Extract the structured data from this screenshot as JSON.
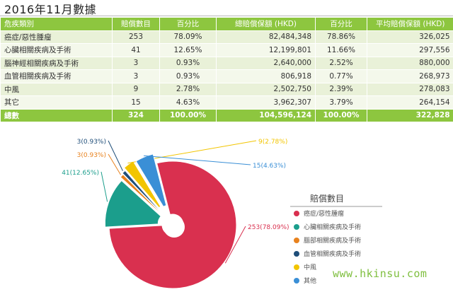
{
  "title": "2016年11月數據",
  "table": {
    "headers": [
      "危疾類別",
      "賠償數目",
      "百分比",
      "總賠償保額 (HKD)",
      "百分比",
      "平均賠償保額 (HKD)"
    ],
    "rows": [
      [
        "癌症/惡性腫瘤",
        "253",
        "78.09%",
        "82,484,348",
        "78.86%",
        "326,025"
      ],
      [
        "心臟相關疾病及手術",
        "41",
        "12.65%",
        "12,199,801",
        "11.66%",
        "297,556"
      ],
      [
        "腦神經相關疾病及手術",
        "3",
        "0.93%",
        "2,640,000",
        "2.52%",
        "880,000"
      ],
      [
        "血管相關疾病及手術",
        "3",
        "0.93%",
        "806,918",
        "0.77%",
        "268,973"
      ],
      [
        "中風",
        "9",
        "2.78%",
        "2,502,750",
        "2.39%",
        "278,083"
      ],
      [
        "其它",
        "15",
        "4.63%",
        "3,962,307",
        "3.79%",
        "264,154"
      ]
    ],
    "total": [
      "總數",
      "324",
      "100.00%",
      "104,596,124",
      "100.00%",
      "322,828"
    ]
  },
  "chart_data": {
    "type": "pie",
    "legend_title": "賠償數目",
    "legend_position": "right",
    "slices": [
      {
        "name": "癌症/惡性腫瘤",
        "value": 253,
        "label": "253(78.09%)",
        "color": "#d9304f"
      },
      {
        "name": "心臟相關疾病及手術",
        "value": 41,
        "label": "41(12.65%)",
        "color": "#1b9e8c"
      },
      {
        "name": "腦部相關疾病及手術",
        "value": 3,
        "label": "3(0.93%)",
        "color": "#e8821e"
      },
      {
        "name": "血管相關疾病及手術",
        "value": 3,
        "label": "3(0.93%)",
        "color": "#1f4e79"
      },
      {
        "name": "中風",
        "value": 9,
        "label": "9(2.78%)",
        "color": "#f2c500"
      },
      {
        "name": "其他",
        "value": 15,
        "label": "15(4.63%)",
        "color": "#3a8fd6"
      }
    ]
  },
  "watermark": "www.hkinsu.com"
}
